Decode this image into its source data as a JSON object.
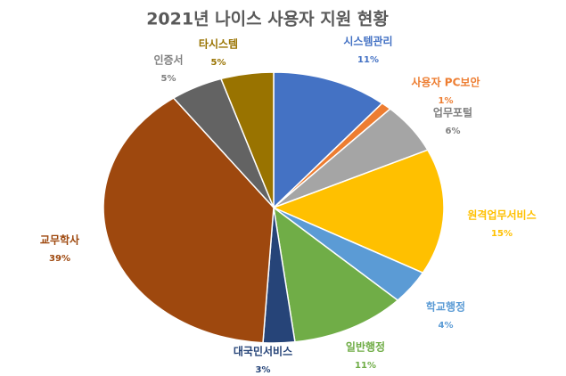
{
  "chart_data": {
    "type": "pie",
    "title": "2021년 나이스 사용자 지원 현황",
    "categories": [
      "시스템관리",
      "사용자 PC보안",
      "업무포털",
      "원격업무서비스",
      "학교행정",
      "일반행정",
      "대국민서비스",
      "교무학사",
      "인증서",
      "타시스템"
    ],
    "values": [
      11,
      1,
      6,
      15,
      4,
      11,
      3,
      39,
      5,
      5
    ],
    "value_labels": [
      "11%",
      "1%",
      "6%",
      "15%",
      "4%",
      "11%",
      "3%",
      "39%",
      "5%",
      "5%"
    ],
    "colors": [
      "#4472c4",
      "#ed7d31",
      "#a5a5a5",
      "#ffc000",
      "#5b9bd5",
      "#70ad47",
      "#264478",
      "#9e480e",
      "#636363",
      "#997300"
    ]
  }
}
